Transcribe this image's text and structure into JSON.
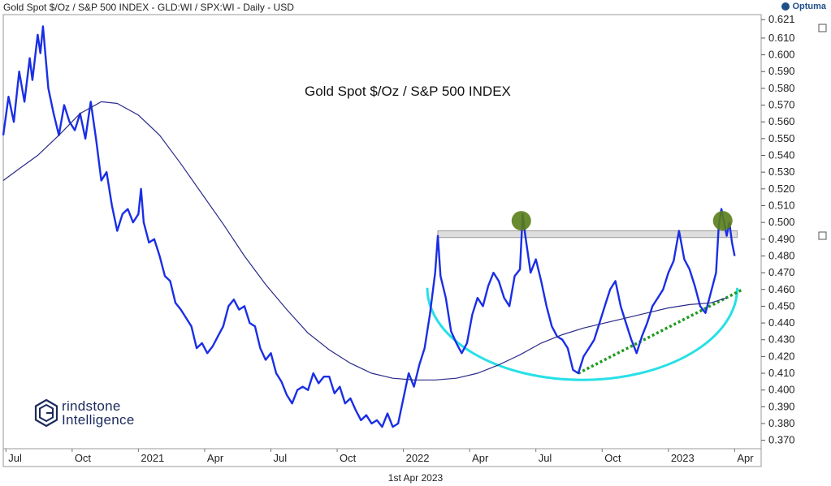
{
  "header": {
    "title": "Gold Spot $/Oz / S&P 500 INDEX - GLD:WI / SPX:WI - Daily - USD",
    "brand": "Optuma"
  },
  "footer": {
    "date": "1st Apr 2023"
  },
  "watermark": {
    "line1": "rindstone",
    "line2": "Intelligence"
  },
  "chart_data": {
    "type": "line",
    "title": "Gold Spot $/Oz / S&P 500 INDEX",
    "yticks": [
      "0.621",
      "0.610",
      "0.600",
      "0.590",
      "0.580",
      "0.570",
      "0.560",
      "0.550",
      "0.540",
      "0.530",
      "0.520",
      "0.510",
      "0.500",
      "0.490",
      "0.480",
      "0.470",
      "0.460",
      "0.450",
      "0.440",
      "0.430",
      "0.420",
      "0.410",
      "0.400",
      "0.390",
      "0.380",
      "0.370"
    ],
    "xticks": [
      "Jul",
      "Oct",
      "2021",
      "Apr",
      "Jul",
      "Oct",
      "2022",
      "Apr",
      "Jul",
      "Oct",
      "2023",
      "Apr"
    ],
    "xtick_dates": [
      2020.5,
      2020.75,
      2021.0,
      2021.25,
      2021.5,
      2021.75,
      2022.0,
      2022.25,
      2022.5,
      2022.75,
      2023.0,
      2023.25
    ],
    "ylim": [
      0.365,
      0.624
    ],
    "xlim": [
      2020.49,
      2023.35
    ],
    "colors": {
      "price": "#1a2ee6",
      "ma": "#2a2a8a",
      "resistance": "#c8c8c8",
      "arc": "#27e0e6",
      "support": "#1f9a1f",
      "marker": "#5a7d1a"
    },
    "series": [
      {
        "name": "price",
        "points": [
          [
            2020.49,
            0.552
          ],
          [
            2020.51,
            0.575
          ],
          [
            2020.53,
            0.56
          ],
          [
            2020.55,
            0.59
          ],
          [
            2020.57,
            0.572
          ],
          [
            2020.59,
            0.598
          ],
          [
            2020.6,
            0.585
          ],
          [
            2020.62,
            0.612
          ],
          [
            2020.63,
            0.601
          ],
          [
            2020.64,
            0.617
          ],
          [
            2020.66,
            0.58
          ],
          [
            2020.68,
            0.565
          ],
          [
            2020.7,
            0.552
          ],
          [
            2020.72,
            0.57
          ],
          [
            2020.74,
            0.56
          ],
          [
            2020.76,
            0.555
          ],
          [
            2020.78,
            0.565
          ],
          [
            2020.8,
            0.55
          ],
          [
            2020.82,
            0.572
          ],
          [
            2020.84,
            0.55
          ],
          [
            2020.86,
            0.525
          ],
          [
            2020.88,
            0.53
          ],
          [
            2020.9,
            0.51
          ],
          [
            2020.92,
            0.495
          ],
          [
            2020.94,
            0.505
          ],
          [
            2020.96,
            0.508
          ],
          [
            2020.98,
            0.5
          ],
          [
            2021.0,
            0.505
          ],
          [
            2021.01,
            0.52
          ],
          [
            2021.02,
            0.5
          ],
          [
            2021.04,
            0.488
          ],
          [
            2021.06,
            0.49
          ],
          [
            2021.08,
            0.48
          ],
          [
            2021.1,
            0.468
          ],
          [
            2021.12,
            0.465
          ],
          [
            2021.14,
            0.452
          ],
          [
            2021.16,
            0.448
          ],
          [
            2021.18,
            0.443
          ],
          [
            2021.2,
            0.438
          ],
          [
            2021.22,
            0.425
          ],
          [
            2021.24,
            0.428
          ],
          [
            2021.26,
            0.422
          ],
          [
            2021.28,
            0.426
          ],
          [
            2021.3,
            0.432
          ],
          [
            2021.32,
            0.438
          ],
          [
            2021.34,
            0.45
          ],
          [
            2021.36,
            0.454
          ],
          [
            2021.38,
            0.448
          ],
          [
            2021.4,
            0.45
          ],
          [
            2021.42,
            0.44
          ],
          [
            2021.44,
            0.438
          ],
          [
            2021.46,
            0.425
          ],
          [
            2021.48,
            0.418
          ],
          [
            2021.5,
            0.422
          ],
          [
            2021.52,
            0.41
          ],
          [
            2021.54,
            0.405
          ],
          [
            2021.56,
            0.397
          ],
          [
            2021.58,
            0.392
          ],
          [
            2021.6,
            0.4
          ],
          [
            2021.62,
            0.402
          ],
          [
            2021.64,
            0.4
          ],
          [
            2021.66,
            0.41
          ],
          [
            2021.68,
            0.404
          ],
          [
            2021.7,
            0.408
          ],
          [
            2021.72,
            0.408
          ],
          [
            2021.74,
            0.398
          ],
          [
            2021.76,
            0.402
          ],
          [
            2021.78,
            0.392
          ],
          [
            2021.8,
            0.395
          ],
          [
            2021.82,
            0.388
          ],
          [
            2021.84,
            0.382
          ],
          [
            2021.86,
            0.385
          ],
          [
            2021.88,
            0.38
          ],
          [
            2021.9,
            0.382
          ],
          [
            2021.92,
            0.378
          ],
          [
            2021.94,
            0.386
          ],
          [
            2021.96,
            0.378
          ],
          [
            2021.98,
            0.38
          ],
          [
            2022.0,
            0.395
          ],
          [
            2022.02,
            0.41
          ],
          [
            2022.04,
            0.402
          ],
          [
            2022.06,
            0.415
          ],
          [
            2022.08,
            0.425
          ],
          [
            2022.1,
            0.445
          ],
          [
            2022.12,
            0.47
          ],
          [
            2022.13,
            0.492
          ],
          [
            2022.14,
            0.468
          ],
          [
            2022.16,
            0.455
          ],
          [
            2022.18,
            0.435
          ],
          [
            2022.2,
            0.428
          ],
          [
            2022.22,
            0.422
          ],
          [
            2022.24,
            0.428
          ],
          [
            2022.26,
            0.445
          ],
          [
            2022.28,
            0.455
          ],
          [
            2022.3,
            0.45
          ],
          [
            2022.32,
            0.462
          ],
          [
            2022.34,
            0.47
          ],
          [
            2022.36,
            0.465
          ],
          [
            2022.38,
            0.455
          ],
          [
            2022.4,
            0.45
          ],
          [
            2022.42,
            0.468
          ],
          [
            2022.44,
            0.472
          ],
          [
            2022.45,
            0.505
          ],
          [
            2022.46,
            0.492
          ],
          [
            2022.48,
            0.47
          ],
          [
            2022.5,
            0.478
          ],
          [
            2022.52,
            0.465
          ],
          [
            2022.54,
            0.45
          ],
          [
            2022.56,
            0.438
          ],
          [
            2022.58,
            0.432
          ],
          [
            2022.6,
            0.43
          ],
          [
            2022.62,
            0.425
          ],
          [
            2022.64,
            0.412
          ],
          [
            2022.66,
            0.41
          ],
          [
            2022.68,
            0.42
          ],
          [
            2022.7,
            0.425
          ],
          [
            2022.72,
            0.43
          ],
          [
            2022.74,
            0.44
          ],
          [
            2022.76,
            0.45
          ],
          [
            2022.78,
            0.46
          ],
          [
            2022.8,
            0.465
          ],
          [
            2022.82,
            0.45
          ],
          [
            2022.84,
            0.44
          ],
          [
            2022.86,
            0.43
          ],
          [
            2022.88,
            0.422
          ],
          [
            2022.9,
            0.432
          ],
          [
            2022.92,
            0.44
          ],
          [
            2022.94,
            0.45
          ],
          [
            2022.96,
            0.455
          ],
          [
            2022.98,
            0.46
          ],
          [
            2023.0,
            0.47
          ],
          [
            2023.02,
            0.477
          ],
          [
            2023.04,
            0.495
          ],
          [
            2023.06,
            0.478
          ],
          [
            2023.08,
            0.472
          ],
          [
            2023.1,
            0.462
          ],
          [
            2023.12,
            0.45
          ],
          [
            2023.14,
            0.446
          ],
          [
            2023.16,
            0.458
          ],
          [
            2023.18,
            0.47
          ],
          [
            2023.19,
            0.498
          ],
          [
            2023.2,
            0.508
          ],
          [
            2023.22,
            0.492
          ],
          [
            2023.23,
            0.5
          ],
          [
            2023.24,
            0.488
          ],
          [
            2023.25,
            0.48
          ]
        ]
      },
      {
        "name": "moving-average",
        "points": [
          [
            2020.49,
            0.525
          ],
          [
            2020.55,
            0.532
          ],
          [
            2020.62,
            0.54
          ],
          [
            2020.7,
            0.552
          ],
          [
            2020.78,
            0.565
          ],
          [
            2020.86,
            0.572
          ],
          [
            2020.92,
            0.571
          ],
          [
            2021.0,
            0.564
          ],
          [
            2021.08,
            0.552
          ],
          [
            2021.16,
            0.535
          ],
          [
            2021.24,
            0.517
          ],
          [
            2021.32,
            0.499
          ],
          [
            2021.4,
            0.48
          ],
          [
            2021.48,
            0.463
          ],
          [
            2021.56,
            0.448
          ],
          [
            2021.64,
            0.434
          ],
          [
            2021.72,
            0.424
          ],
          [
            2021.8,
            0.416
          ],
          [
            2021.88,
            0.41
          ],
          [
            2021.96,
            0.407
          ],
          [
            2022.04,
            0.406
          ],
          [
            2022.12,
            0.406
          ],
          [
            2022.2,
            0.407
          ],
          [
            2022.28,
            0.41
          ],
          [
            2022.36,
            0.415
          ],
          [
            2022.44,
            0.421
          ],
          [
            2022.52,
            0.428
          ],
          [
            2022.6,
            0.433
          ],
          [
            2022.68,
            0.437
          ],
          [
            2022.76,
            0.44
          ],
          [
            2022.84,
            0.443
          ],
          [
            2022.92,
            0.446
          ],
          [
            2023.0,
            0.449
          ],
          [
            2023.08,
            0.451
          ],
          [
            2023.16,
            0.452
          ],
          [
            2023.22,
            0.455
          ]
        ]
      }
    ],
    "annotations": {
      "resistance_band": {
        "x": [
          2022.13,
          2023.26
        ],
        "y": [
          0.491,
          0.495
        ]
      },
      "support_line": {
        "from": [
          2022.66,
          0.41
        ],
        "to": [
          2023.28,
          0.46
        ]
      },
      "markers": [
        [
          2022.445,
          0.501
        ],
        [
          2023.205,
          0.501
        ]
      ],
      "cup_arc": {
        "x": [
          2022.09,
          2023.26
        ],
        "top": 0.461,
        "bottom": 0.406
      }
    }
  }
}
